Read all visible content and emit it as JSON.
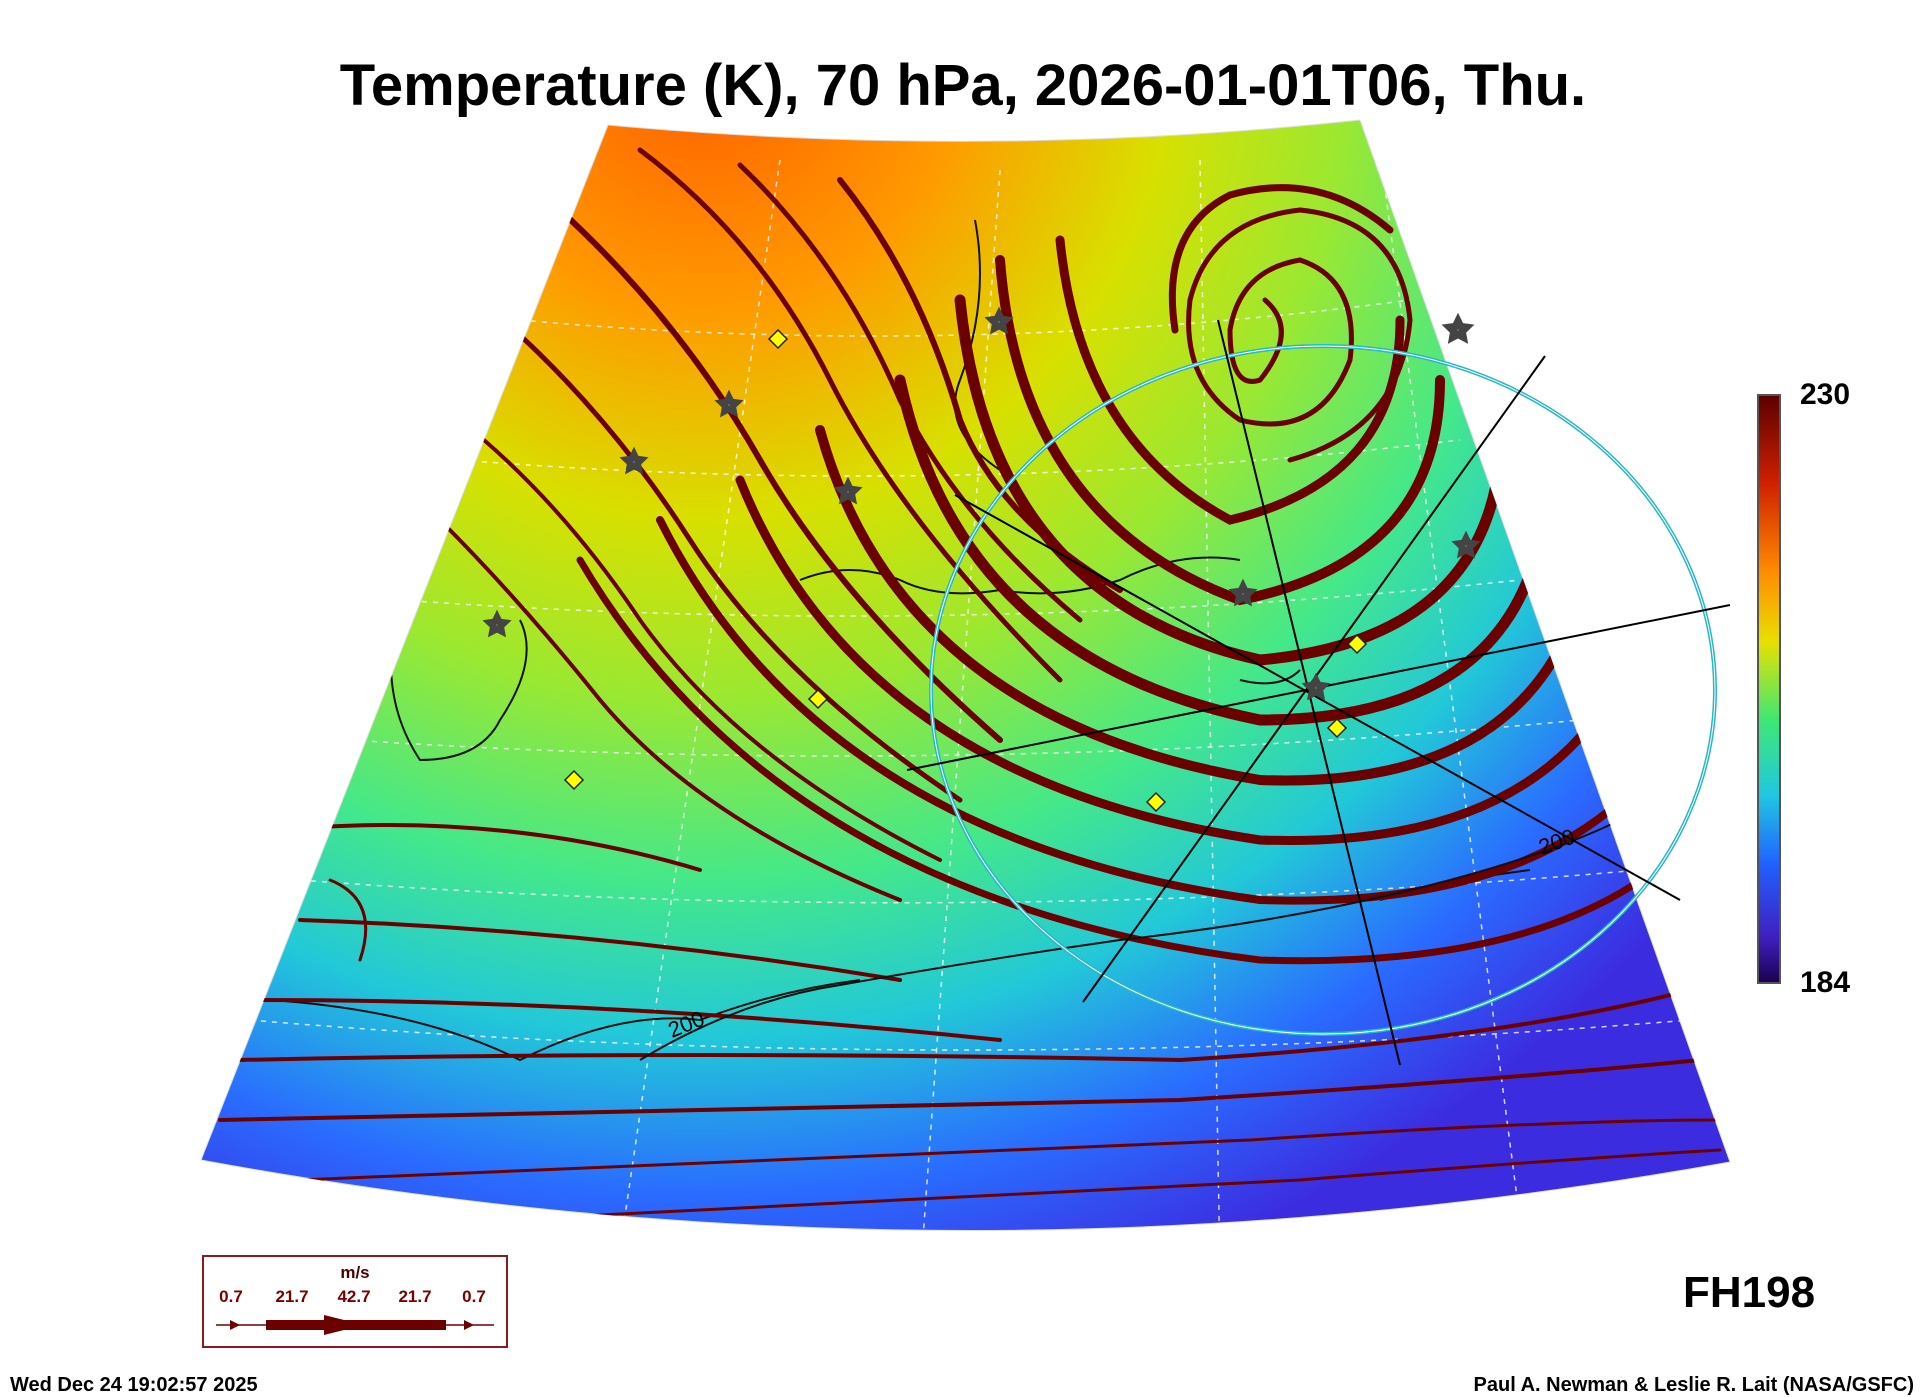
{
  "title": "Temperature (K), 70 hPa, 2026-01-01T06, Thu.",
  "colorbar": {
    "max": "230",
    "min": "184"
  },
  "contour_labels": [
    "200",
    "200"
  ],
  "forecast_hour": "FH198",
  "timestamp": "Wed Dec 24 19:02:57 2025",
  "credit": "Paul A. Newman & Leslie R. Lait (NASA/GSFC)",
  "wind_legend": {
    "unit": "m/s",
    "values": [
      "0.7",
      "21.7",
      "42.7",
      "21.7",
      "0.7"
    ]
  },
  "colors": {
    "streamline": "#6b0000",
    "circle": "#28b7c7",
    "marker_fill": "#ffff00",
    "warm": "#ff7800",
    "cold": "#3a3aff"
  },
  "icons": [
    "star-marker-icon",
    "diamond-marker-icon",
    "wind-arrow-icon"
  ]
}
